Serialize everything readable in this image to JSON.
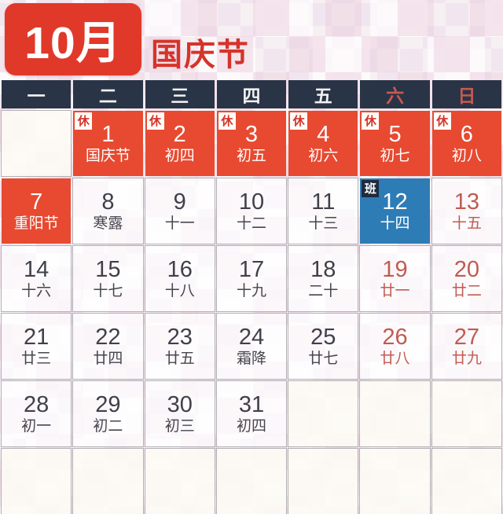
{
  "header": {
    "month_label": "10月",
    "festival_label": "国庆节"
  },
  "calendar": {
    "weekday_header": [
      {
        "label": "一",
        "weekend": false
      },
      {
        "label": "二",
        "weekend": false
      },
      {
        "label": "三",
        "weekend": false
      },
      {
        "label": "四",
        "weekend": false
      },
      {
        "label": "五",
        "weekend": false
      },
      {
        "label": "六",
        "weekend": true
      },
      {
        "label": "日",
        "weekend": true
      }
    ],
    "weeks": [
      [
        {
          "type": "empty"
        },
        {
          "type": "rest",
          "day": "1",
          "lunar": "国庆节",
          "badge": "休"
        },
        {
          "type": "rest",
          "day": "2",
          "lunar": "初四",
          "badge": "休"
        },
        {
          "type": "rest",
          "day": "3",
          "lunar": "初五",
          "badge": "休"
        },
        {
          "type": "rest",
          "day": "4",
          "lunar": "初六",
          "badge": "休"
        },
        {
          "type": "rest",
          "day": "5",
          "lunar": "初七",
          "badge": "休"
        },
        {
          "type": "rest",
          "day": "6",
          "lunar": "初八",
          "badge": "休"
        }
      ],
      [
        {
          "type": "holiday",
          "day": "7",
          "lunar": "重阳节"
        },
        {
          "type": "normal",
          "day": "8",
          "lunar": "寒露"
        },
        {
          "type": "normal",
          "day": "9",
          "lunar": "十一"
        },
        {
          "type": "normal",
          "day": "10",
          "lunar": "十二"
        },
        {
          "type": "normal",
          "day": "11",
          "lunar": "十三"
        },
        {
          "type": "work",
          "day": "12",
          "lunar": "十四",
          "badge": "班"
        },
        {
          "type": "weekend",
          "day": "13",
          "lunar": "十五"
        }
      ],
      [
        {
          "type": "normal",
          "day": "14",
          "lunar": "十六"
        },
        {
          "type": "normal",
          "day": "15",
          "lunar": "十七"
        },
        {
          "type": "normal",
          "day": "16",
          "lunar": "十八"
        },
        {
          "type": "normal",
          "day": "17",
          "lunar": "十九"
        },
        {
          "type": "normal",
          "day": "18",
          "lunar": "二十"
        },
        {
          "type": "weekend",
          "day": "19",
          "lunar": "廿一"
        },
        {
          "type": "weekend",
          "day": "20",
          "lunar": "廿二"
        }
      ],
      [
        {
          "type": "normal",
          "day": "21",
          "lunar": "廿三"
        },
        {
          "type": "normal",
          "day": "22",
          "lunar": "廿四"
        },
        {
          "type": "normal",
          "day": "23",
          "lunar": "廿五"
        },
        {
          "type": "normal",
          "day": "24",
          "lunar": "霜降"
        },
        {
          "type": "normal",
          "day": "25",
          "lunar": "廿七"
        },
        {
          "type": "weekend",
          "day": "26",
          "lunar": "廿八"
        },
        {
          "type": "weekend",
          "day": "27",
          "lunar": "廿九"
        }
      ],
      [
        {
          "type": "normal",
          "day": "28",
          "lunar": "初一"
        },
        {
          "type": "normal",
          "day": "29",
          "lunar": "初二"
        },
        {
          "type": "normal",
          "day": "30",
          "lunar": "初三"
        },
        {
          "type": "normal",
          "day": "31",
          "lunar": "初四"
        },
        {
          "type": "empty"
        },
        {
          "type": "empty"
        },
        {
          "type": "empty"
        }
      ],
      [
        {
          "type": "empty"
        },
        {
          "type": "empty"
        },
        {
          "type": "empty"
        },
        {
          "type": "empty"
        },
        {
          "type": "empty"
        },
        {
          "type": "empty"
        },
        {
          "type": "empty"
        }
      ]
    ]
  },
  "colors": {
    "holiday_red": "#e74a31",
    "month_box_red": "#e0392a",
    "festival_text_red": "#d5342a",
    "header_navy": "#2a3447",
    "workday_blue": "#2e7cb5",
    "weekend_text": "#c05b52"
  }
}
